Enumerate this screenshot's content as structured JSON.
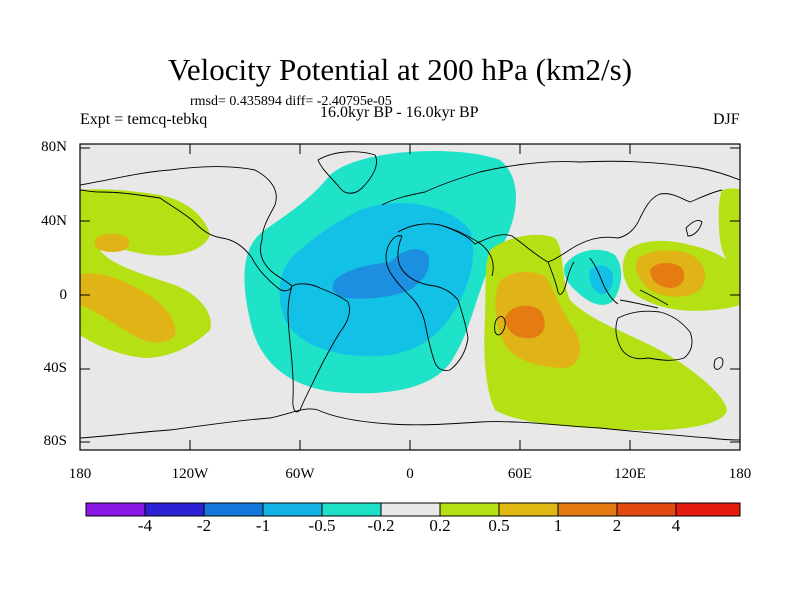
{
  "title": "Velocity Potential at 200 hPa (km2/s)",
  "stats": "rmsd= 0.435894  diff= -2.40795e-05",
  "experiment": "Expt = temcq-tebkq",
  "period": "16.0kyr BP - 16.0kyr BP",
  "season": "DJF",
  "lat_labels": [
    "80N",
    "40N",
    "0",
    "40S",
    "80S"
  ],
  "lon_labels": [
    "180",
    "120W",
    "60W",
    "0",
    "60E",
    "120E",
    "180"
  ],
  "colorbar": {
    "labels": [
      "-4",
      "-2",
      "-1",
      "-0.5",
      "-0.2",
      "0.2",
      "0.5",
      "1",
      "2",
      "4"
    ],
    "colors": [
      "#8a17e6",
      "#2b22d6",
      "#1477dc",
      "#13b3e6",
      "#1ee0c6",
      "#e8e8e8",
      "#b4e014",
      "#e0b814",
      "#e47a12",
      "#e34a12",
      "#e51b10"
    ]
  },
  "colors": {
    "land_background": "#e8e8e8",
    "c_neg1": "#1c8fe0",
    "c_neg05": "#14c1e6",
    "c_neg02": "#1ee3c8",
    "c_pos02": "#b4e014",
    "c_pos05": "#e0b416",
    "c_pos1": "#e47c12"
  }
}
